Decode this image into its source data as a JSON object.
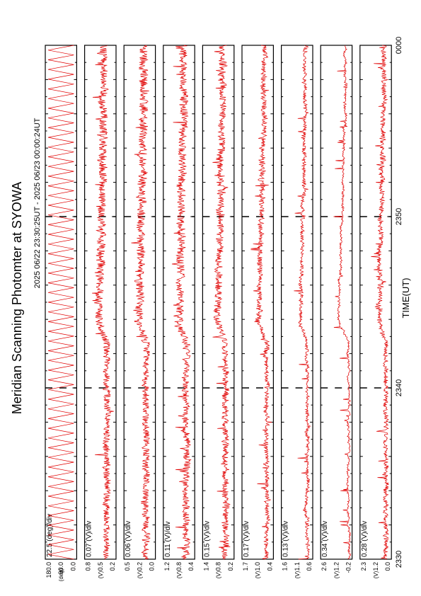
{
  "page": {
    "title": "Meridian Scanning Photomter at SYOWA",
    "subtitle": "2025 06/22 23:30:25UT - 2025 06/23 00:00:24UT",
    "xlabel": "TIME(UT)"
  },
  "chart_data": {
    "type": "line",
    "title": "Meridian Scanning Photomter at SYOWA",
    "subtitle": "2025 06/22 23:30:25UT - 2025 06/23 00:00:24UT",
    "xlabel": "TIME(UT)",
    "x_ticks": [
      "2330",
      "2340",
      "2350",
      "0000"
    ],
    "xlim_minutes": [
      0,
      30
    ],
    "line_color": "#e00000",
    "dashed_markers_at": [
      "2340",
      "2350"
    ],
    "panels": [
      {
        "key": "angle",
        "scale": "22.5 (deg)/div",
        "unit": "(deg)",
        "ticks": [
          "180.0",
          "90.0",
          "0.0"
        ],
        "kind": "scan"
      },
      {
        "key": "p1",
        "scale": "0.07 (V)/div",
        "unit": "(V)",
        "ticks": [
          "0.8",
          "0.5",
          "0.2"
        ],
        "kind": "noise",
        "base": 0.3,
        "amp": 0.22,
        "burst": 0.25
      },
      {
        "key": "p2",
        "scale": "0.06 (V)/div",
        "unit": "(V)",
        "ticks": [
          "0.5",
          "0.2",
          "0.0"
        ],
        "kind": "noise",
        "base": 0.3,
        "amp": 0.22,
        "burst": 0.22
      },
      {
        "key": "p3",
        "scale": "0.11 (V)/div",
        "unit": "(V)",
        "ticks": [
          "1.2",
          "0.8",
          "0.4"
        ],
        "kind": "noise",
        "base": 0.28,
        "amp": 0.22,
        "burst": 0.22
      },
      {
        "key": "p4",
        "scale": "0.15 (V)/div",
        "unit": "(V)",
        "ticks": [
          "1.4",
          "0.8",
          "0.2"
        ],
        "kind": "noise",
        "base": 0.28,
        "amp": 0.2,
        "burst": 0.25
      },
      {
        "key": "p5",
        "scale": "0.17 (V)/div",
        "unit": "(V)",
        "ticks": [
          "1.7",
          "1.0",
          "0.4"
        ],
        "kind": "noise",
        "base": 0.22,
        "amp": 0.14,
        "burst": 0.25
      },
      {
        "key": "p6",
        "scale": "0.13 (V)/div",
        "unit": "(V)",
        "ticks": [
          "1.6",
          "1.1",
          "0.6"
        ],
        "kind": "noise",
        "base": 0.18,
        "amp": 0.1,
        "burst": 0.22
      },
      {
        "key": "p7",
        "scale": "0.34 (V)/div",
        "unit": "(V)",
        "ticks": [
          "2.6",
          "1.2",
          "-0.2"
        ],
        "kind": "noise",
        "base": 0.12,
        "amp": 0.05,
        "burst": 0.3
      },
      {
        "key": "p8",
        "scale": "0.28 (V)/div",
        "unit": "(V)",
        "ticks": [
          "2.3",
          "1.2",
          "0.0"
        ],
        "kind": "noise",
        "base": 0.18,
        "amp": 0.14,
        "burst": 0.22
      }
    ]
  }
}
